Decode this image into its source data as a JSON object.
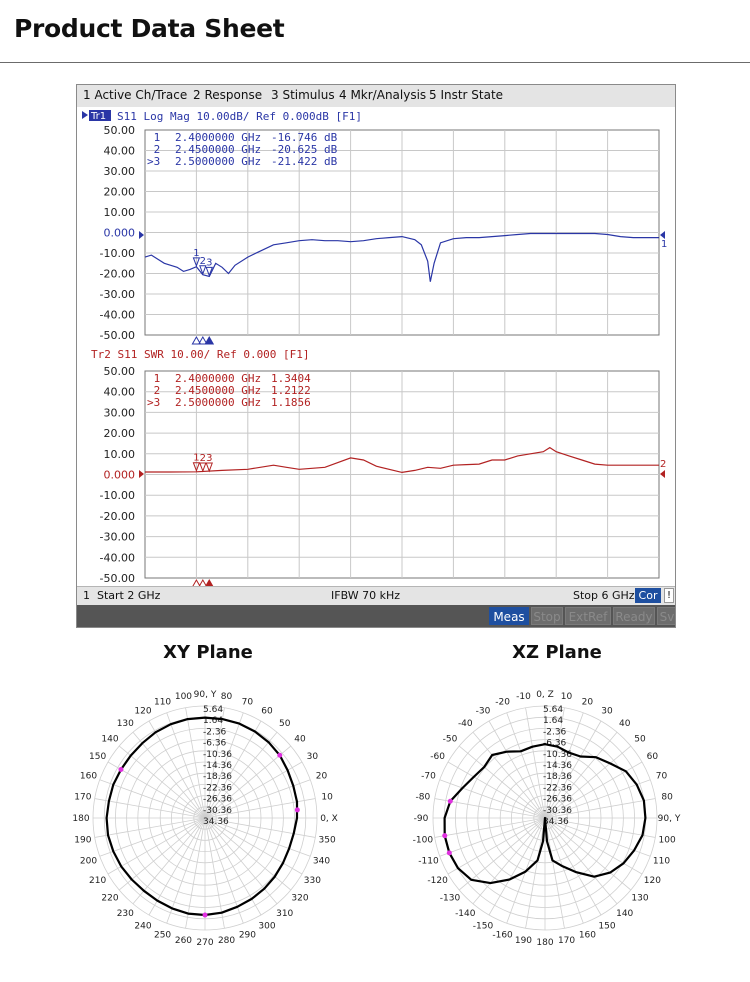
{
  "page": {
    "title": "Product Data Sheet"
  },
  "vna": {
    "menu": [
      "1 Active Ch/Trace",
      "2 Response",
      "3 Stimulus",
      "4 Mkr/Analysis",
      "5 Instr State"
    ],
    "status": {
      "channel": "1",
      "start": "Start 2 GHz",
      "ifbw": "IFBW 70 kHz",
      "stop": "Stop 6 GHz",
      "cor": "Cor",
      "flag": "!"
    },
    "softkeys": [
      "Meas",
      "Stop",
      "ExtRef",
      "Ready",
      "Sv"
    ],
    "colors": {
      "trace1": "#2a36a6",
      "trace2": "#b22222",
      "marker_fill": "#1a1a8c",
      "softkey_active": "#1e4fa0"
    }
  },
  "chart_data": [
    {
      "type": "line",
      "title": "Tr1 S11 Log Mag 10.00dB/ Ref 0.000dB [F1]",
      "trace_tag": "Tr1",
      "title_rest": "S11 Log Mag 10.00dB/ Ref 0.000dB [F1]",
      "ref_label": "1",
      "unit": "dB",
      "x_range_ghz": [
        2,
        6
      ],
      "ylim": [
        -50,
        50
      ],
      "yticks": [
        "50.00",
        "40.00",
        "30.00",
        "20.00",
        "10.00",
        "0.000",
        "-10.00",
        "-20.00",
        "-30.00",
        "-40.00",
        "-50.00"
      ],
      "grid": true,
      "markers": [
        {
          "id": "1",
          "prefix": " ",
          "freq": "2.4000000 GHz",
          "value": "-16.746 dB",
          "x": 2.4,
          "y": -16.746
        },
        {
          "id": "2",
          "prefix": " ",
          "freq": "2.4500000 GHz",
          "value": "-20.625 dB",
          "x": 2.45,
          "y": -20.625
        },
        {
          "id": "3",
          "prefix": ">",
          "freq": "2.5000000 GHz",
          "value": "-21.422 dB",
          "x": 2.5,
          "y": -21.422
        }
      ],
      "series": [
        {
          "x": [
            2.0,
            2.05,
            2.1,
            2.15,
            2.2,
            2.25,
            2.3,
            2.35,
            2.4,
            2.45,
            2.5,
            2.55,
            2.6,
            2.65,
            2.7,
            2.8,
            2.9,
            3.0,
            3.1,
            3.2,
            3.3,
            3.4,
            3.5,
            3.6,
            3.7,
            3.8,
            3.9,
            4.0,
            4.1,
            4.15,
            4.2,
            4.22,
            4.25,
            4.3,
            4.4,
            4.5,
            4.6,
            4.7,
            4.8,
            4.9,
            5.0,
            5.1,
            5.2,
            5.3,
            5.4,
            5.5,
            5.6,
            5.7,
            5.8,
            5.9,
            6.0
          ],
          "y": [
            -12,
            -11,
            -13,
            -15,
            -16,
            -17,
            -19,
            -18,
            -16.7,
            -20.6,
            -21.4,
            -15,
            -17,
            -20,
            -16,
            -12,
            -9,
            -6,
            -5,
            -4,
            -3.5,
            -4,
            -4,
            -4.5,
            -4,
            -3,
            -2.5,
            -2,
            -3.5,
            -6,
            -14,
            -24,
            -15,
            -5,
            -3,
            -2.5,
            -2.5,
            -2,
            -1.5,
            -1,
            -0.5,
            -0.5,
            -0.5,
            -0.5,
            -0.5,
            -0.5,
            -1,
            -2,
            -2.5,
            -2.5,
            -2.5
          ]
        }
      ]
    },
    {
      "type": "line",
      "title": "Tr2 S11 SWR 10.00/ Ref 0.000 [F1]",
      "ref_label": "2",
      "x_range_ghz": [
        2,
        6
      ],
      "ylim": [
        -50,
        50
      ],
      "yticks": [
        "50.00",
        "40.00",
        "30.00",
        "20.00",
        "10.00",
        "0.000",
        "-10.00",
        "-20.00",
        "-30.00",
        "-40.00",
        "-50.00"
      ],
      "grid": true,
      "markers": [
        {
          "id": "1",
          "prefix": " ",
          "freq": "2.4000000 GHz",
          "value": "1.3404",
          "x": 2.4,
          "y": 1.3404
        },
        {
          "id": "2",
          "prefix": " ",
          "freq": "2.4500000 GHz",
          "value": "1.2122",
          "x": 2.45,
          "y": 1.2122
        },
        {
          "id": "3",
          "prefix": ">",
          "freq": "2.5000000 GHz",
          "value": "1.1856",
          "x": 2.5,
          "y": 1.1856
        }
      ],
      "series": [
        {
          "x": [
            2.0,
            2.2,
            2.4,
            2.6,
            2.8,
            3.0,
            3.1,
            3.2,
            3.4,
            3.6,
            3.7,
            3.8,
            4.0,
            4.1,
            4.2,
            4.3,
            4.4,
            4.5,
            4.6,
            4.7,
            4.8,
            4.9,
            5.0,
            5.1,
            5.15,
            5.2,
            5.3,
            5.4,
            5.5,
            5.6,
            5.8,
            6.0
          ],
          "y": [
            1.2,
            1.2,
            1.3,
            2,
            2.5,
            4.5,
            3.5,
            2.5,
            3.5,
            8,
            7,
            4,
            1,
            2,
            3.5,
            3,
            4.5,
            4.8,
            5,
            7,
            7,
            9,
            10,
            11,
            13,
            11,
            9,
            7,
            5,
            4.5,
            4.5,
            4.5
          ]
        }
      ]
    },
    {
      "type": "polar",
      "title": "XY Plane",
      "axis_label_0": "0, X",
      "axis_label_90": "90, Y",
      "angle_labels": [
        "0, X",
        "10",
        "20",
        "30",
        "40",
        "50",
        "60",
        "70",
        "80",
        "90, Y",
        "100",
        "110",
        "120",
        "130",
        "140",
        "150",
        "160",
        "170",
        "180",
        "190",
        "200",
        "210",
        "220",
        "230",
        "240",
        "250",
        "260",
        "270",
        "280",
        "290",
        "300",
        "310",
        "320",
        "330",
        "340",
        "350"
      ],
      "radial_labels": [
        "5.64",
        "1.64",
        "-2.36",
        "-6.36",
        "-10.36",
        "-14.36",
        "-18.36",
        "-22.36",
        "-26.36",
        "-30.36",
        "34.36"
      ],
      "rlim": [
        -34.36,
        5.64
      ],
      "pattern": {
        "angles_deg": [
          0,
          10,
          20,
          30,
          40,
          50,
          60,
          70,
          80,
          90,
          100,
          110,
          120,
          130,
          140,
          150,
          160,
          170,
          180,
          190,
          200,
          210,
          220,
          230,
          240,
          250,
          260,
          270,
          280,
          290,
          300,
          310,
          320,
          330,
          340,
          350
        ],
        "gain_db": [
          -1.5,
          -1.0,
          -0.8,
          -0.3,
          0.5,
          1.0,
          1.3,
          1.5,
          1.5,
          1.5,
          1.5,
          1.3,
          1.0,
          0.5,
          0.3,
          0.3,
          0.5,
          0.5,
          0.8,
          0.8,
          0.5,
          0.2,
          -0.2,
          -0.4,
          -0.3,
          0.0,
          0.3,
          0.3,
          0.0,
          -0.6,
          -1.0,
          -1.4,
          -1.8,
          -2.2,
          -2.4,
          -2.2
        ]
      },
      "marker_angles_deg": [
        5,
        40,
        150,
        270
      ],
      "marker_color": "#e030e0"
    },
    {
      "type": "polar",
      "title": "XZ Plane",
      "axis_label_0": "0, Z",
      "axis_label_90": "90, Y",
      "angle_labels": [
        "0, Z",
        "10",
        "20",
        "30",
        "40",
        "50",
        "60",
        "70",
        "80",
        "90, Y",
        "100",
        "110",
        "120",
        "130",
        "140",
        "150",
        "160",
        "170",
        "180",
        "190",
        "-160",
        "-150",
        "-140",
        "-130",
        "-120",
        "-110",
        "-100",
        "-90",
        "-80",
        "-70",
        "-60",
        "-50",
        "-40",
        "-30",
        "-20",
        "-10"
      ],
      "radial_labels": [
        "5.64",
        "1.64",
        "-2.36",
        "-6.36",
        "-10.36",
        "-14.36",
        "-18.36",
        "-22.36",
        "-26.36",
        "-30.36",
        "34.36"
      ],
      "rlim": [
        -34.36,
        5.64
      ],
      "pattern": {
        "angles_deg": [
          0,
          10,
          20,
          30,
          40,
          50,
          60,
          70,
          80,
          90,
          100,
          110,
          120,
          130,
          140,
          150,
          160,
          170,
          175,
          180,
          185,
          190,
          200,
          210,
          220,
          230,
          240,
          250,
          260,
          270,
          280,
          290,
          300,
          310,
          320,
          330,
          340,
          350
        ],
        "gain_db": [
          -8,
          -8.5,
          -9.5,
          -9,
          -6,
          -4,
          -1,
          0.5,
          1.5,
          1.5,
          1,
          -0.5,
          -2,
          -4,
          -7,
          -12,
          -16,
          -19,
          -26,
          -34.36,
          -26,
          -19,
          -14,
          -9,
          -4,
          0,
          1.5,
          2,
          2,
          1.5,
          0,
          -3,
          -5,
          -6,
          -5,
          -7,
          -9,
          -8.5
        ]
      },
      "marker_angles_deg": [
        -80,
        -100,
        -110
      ],
      "marker_color": "#e030e0"
    }
  ]
}
